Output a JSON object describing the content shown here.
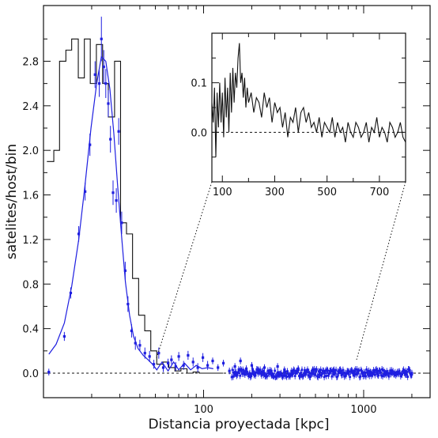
{
  "chart_data": [
    {
      "type": "scatter",
      "xlabel": "Distancia proyectada [kpc]",
      "ylabel": "satelites/host/bin",
      "xscale": "log",
      "xlim": [
        10,
        2600
      ],
      "ylim": [
        -0.22,
        3.3
      ],
      "x_ticks": [
        {
          "v": 100,
          "label": "100"
        },
        {
          "v": 1000,
          "label": "1000"
        }
      ],
      "y_ticks": [
        {
          "v": 0.0,
          "label": "0.0"
        },
        {
          "v": 0.4,
          "label": "0.4"
        },
        {
          "v": 0.8,
          "label": "0.8"
        },
        {
          "v": 1.2,
          "label": "1.2"
        },
        {
          "v": 1.6,
          "label": "1.6"
        },
        {
          "v": 2.0,
          "label": "2.0"
        },
        {
          "v": 2.4,
          "label": "2.4"
        },
        {
          "v": 2.8,
          "label": "2.8"
        }
      ],
      "zero_line": true,
      "colors": {
        "points": "#1f1fe0",
        "histogram": "#111111",
        "fit": "#1f1fe0"
      },
      "histogram": {
        "name": "histogram",
        "x": [
          10.5,
          11.6,
          12.6,
          13.8,
          15.0,
          16.5,
          18.0,
          19.6,
          21.4,
          23.4,
          25.4,
          27.8,
          30.3,
          33.0,
          36.0,
          39.3,
          42.9,
          46.8,
          51.0,
          55.7,
          60.7,
          66.2,
          72.2,
          78.8,
          86.0,
          93.8,
          102.3,
          111.6,
          121.7
        ],
        "y": [
          1.9,
          2.0,
          2.8,
          2.9,
          3.0,
          2.65,
          3.0,
          2.6,
          2.95,
          2.6,
          2.3,
          2.8,
          1.35,
          1.25,
          0.85,
          0.52,
          0.38,
          0.2,
          0.08,
          0.1,
          0.05,
          0.02,
          0.04,
          0.0,
          0.01,
          0.0,
          0.0,
          0.0,
          0.0
        ]
      },
      "points": {
        "name": "data",
        "x": [
          10.8,
          13.5,
          14.8,
          16.6,
          18.2,
          19.5,
          21.0,
          22.3,
          23.0,
          23.8,
          24.5,
          25.4,
          26.2,
          27.2,
          28.5,
          29.5,
          30.8,
          32.4,
          33.7,
          35.5,
          37.5,
          40.0,
          43.0,
          46.0,
          48.9,
          52.5,
          56.0,
          60.0,
          63.0,
          67.0,
          70.0,
          75.0,
          80.0,
          86.0,
          92.0,
          99.0,
          106.0,
          114.0,
          123.0,
          133.0,
          145.0,
          157.0,
          170.0,
          185.0,
          200.0,
          220.0,
          240.0,
          265.0,
          290.0,
          320.0,
          355.0,
          390.0,
          430.0,
          480.0,
          530.0,
          590.0,
          650.0,
          720.0,
          800.0,
          880.0,
          980.0,
          1100.0,
          1220.0,
          1350.0,
          1500.0,
          1650.0,
          1820.0,
          2000.0
        ],
        "y": [
          0.01,
          0.33,
          0.72,
          1.25,
          1.63,
          2.05,
          2.68,
          2.6,
          3.0,
          2.75,
          2.6,
          2.42,
          2.1,
          1.62,
          1.55,
          2.17,
          1.35,
          0.92,
          0.62,
          0.38,
          0.27,
          0.25,
          0.18,
          0.15,
          0.08,
          0.18,
          0.05,
          0.09,
          0.12,
          0.06,
          0.15,
          0.07,
          0.16,
          0.1,
          0.05,
          0.14,
          0.07,
          0.11,
          0.05,
          0.09,
          0.02,
          0.06,
          0.11,
          0.04,
          0.07,
          0.03,
          0.05,
          0.02,
          0.06,
          0.03,
          0.02,
          0.04,
          0.0,
          0.03,
          0.01,
          0.03,
          -0.01,
          0.02,
          0.01,
          0.02,
          0.0,
          0.01,
          0.02,
          -0.01,
          0.01,
          0.0,
          -0.01,
          0.0
        ],
        "err": [
          0.03,
          0.04,
          0.05,
          0.07,
          0.08,
          0.1,
          0.12,
          0.12,
          0.2,
          0.15,
          0.13,
          0.12,
          0.12,
          0.11,
          0.11,
          0.12,
          0.1,
          0.08,
          0.07,
          0.06,
          0.06,
          0.05,
          0.05,
          0.05,
          0.04,
          0.05,
          0.04,
          0.04,
          0.04,
          0.04,
          0.04,
          0.04,
          0.04,
          0.04,
          0.04,
          0.04,
          0.04,
          0.03,
          0.03,
          0.03,
          0.03,
          0.03,
          0.03,
          0.03,
          0.03,
          0.03,
          0.03,
          0.03,
          0.03,
          0.03,
          0.03,
          0.03,
          0.03,
          0.03,
          0.03,
          0.03,
          0.03,
          0.03,
          0.03,
          0.03,
          0.03,
          0.03,
          0.03,
          0.03,
          0.03,
          0.03,
          0.03,
          0.03
        ]
      },
      "fit": {
        "name": "fit",
        "x": [
          10.8,
          12.0,
          13.5,
          15.0,
          16.6,
          18.2,
          19.8,
          21.5,
          23.0,
          24.5,
          26.0,
          27.5,
          29.0,
          30.8,
          32.5,
          34.5,
          36.5,
          39.0,
          42.0,
          45.0,
          48.0,
          51.0,
          55.0,
          60.0,
          65.0,
          70.0,
          76.0,
          83.0,
          90.0,
          98.0,
          106.0,
          115.0
        ],
        "y": [
          0.17,
          0.26,
          0.45,
          0.78,
          1.2,
          1.7,
          2.2,
          2.6,
          2.84,
          2.8,
          2.55,
          2.15,
          1.7,
          1.22,
          0.82,
          0.52,
          0.33,
          0.22,
          0.16,
          0.12,
          0.08,
          0.03,
          0.1,
          0.02,
          0.1,
          0.03,
          0.09,
          0.03,
          0.07,
          0.04,
          0.05,
          0.04
        ]
      }
    },
    {
      "type": "line",
      "xlim": [
        60,
        800
      ],
      "ylim": [
        -0.1,
        0.2
      ],
      "x_ticks": [
        {
          "v": 100,
          "label": "100"
        },
        {
          "v": 300,
          "label": "300"
        },
        {
          "v": 500,
          "label": "500"
        },
        {
          "v": 700,
          "label": "700"
        }
      ],
      "y_ticks": [
        {
          "v": 0.0,
          "label": "0.0"
        },
        {
          "v": 0.1,
          "label": "0.1"
        }
      ],
      "zero_line": true,
      "series": [
        {
          "x": [
            60,
            65,
            70,
            75,
            80,
            85,
            90,
            95,
            100,
            105,
            110,
            115,
            120,
            125,
            130,
            135,
            140,
            145,
            150,
            155,
            160,
            165,
            170,
            175,
            180,
            185,
            190,
            195,
            200,
            210,
            220,
            230,
            240,
            250,
            260,
            270,
            280,
            290,
            300,
            310,
            320,
            330,
            340,
            350,
            360,
            370,
            380,
            390,
            400,
            410,
            420,
            430,
            440,
            450,
            460,
            470,
            480,
            490,
            500,
            510,
            520,
            530,
            540,
            550,
            560,
            570,
            580,
            590,
            600,
            610,
            620,
            630,
            640,
            650,
            660,
            670,
            680,
            690,
            700,
            710,
            720,
            730,
            740,
            750,
            760,
            770,
            780,
            790,
            800
          ],
          "y": [
            0.06,
            0.02,
            0.09,
            -0.05,
            0.08,
            0.01,
            0.1,
            0.02,
            0.08,
            -0.01,
            0.11,
            0.03,
            0.09,
            0.0,
            0.12,
            0.04,
            0.13,
            0.06,
            0.12,
            0.09,
            0.15,
            0.18,
            0.1,
            0.12,
            0.07,
            0.11,
            0.05,
            0.09,
            0.06,
            0.08,
            0.04,
            0.07,
            0.06,
            0.03,
            0.08,
            0.05,
            0.07,
            0.02,
            0.06,
            0.04,
            0.05,
            0.01,
            0.04,
            -0.01,
            0.03,
            0.02,
            0.05,
            0.0,
            0.04,
            0.05,
            0.02,
            0.04,
            0.01,
            0.02,
            0.0,
            0.03,
            -0.01,
            0.02,
            0.01,
            0.0,
            0.03,
            -0.01,
            0.02,
            0.0,
            0.01,
            -0.02,
            0.02,
            0.0,
            -0.01,
            0.02,
            0.01,
            -0.01,
            0.0,
            0.02,
            -0.02,
            0.01,
            0.0,
            0.03,
            -0.01,
            0.01,
            0.0,
            -0.02,
            0.02,
            0.01,
            -0.01,
            0.0,
            0.02,
            -0.01,
            -0.02
          ]
        }
      ]
    }
  ]
}
